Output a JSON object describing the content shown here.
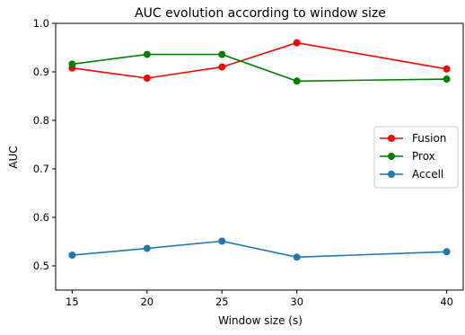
{
  "chart_data": {
    "type": "line",
    "title": "AUC evolution according to window size",
    "xlabel": "Window size (s)",
    "ylabel": "AUC",
    "x": [
      15,
      20,
      25,
      30,
      40
    ],
    "xlim": [
      13.9,
      41.1
    ],
    "ylim": [
      0.45,
      1.0
    ],
    "xticks": [
      15,
      20,
      25,
      30,
      40
    ],
    "yticks": [
      0.5,
      0.6,
      0.7,
      0.8,
      0.9,
      1.0
    ],
    "ytick_labels": [
      "0.5",
      "0.6",
      "0.7",
      "0.8",
      "0.9",
      "1.0"
    ],
    "grid": false,
    "legend_position": "center-right",
    "series": [
      {
        "name": "Fusion",
        "color": "#ff0000",
        "values": [
          0.908,
          0.887,
          0.91,
          0.96,
          0.906
        ]
      },
      {
        "name": "Prox",
        "color": "#008000",
        "values": [
          0.916,
          0.936,
          0.936,
          0.881,
          0.885
        ]
      },
      {
        "name": "Accell",
        "color": "#1f77b4",
        "values": [
          0.522,
          0.536,
          0.551,
          0.518,
          0.529
        ]
      }
    ]
  }
}
